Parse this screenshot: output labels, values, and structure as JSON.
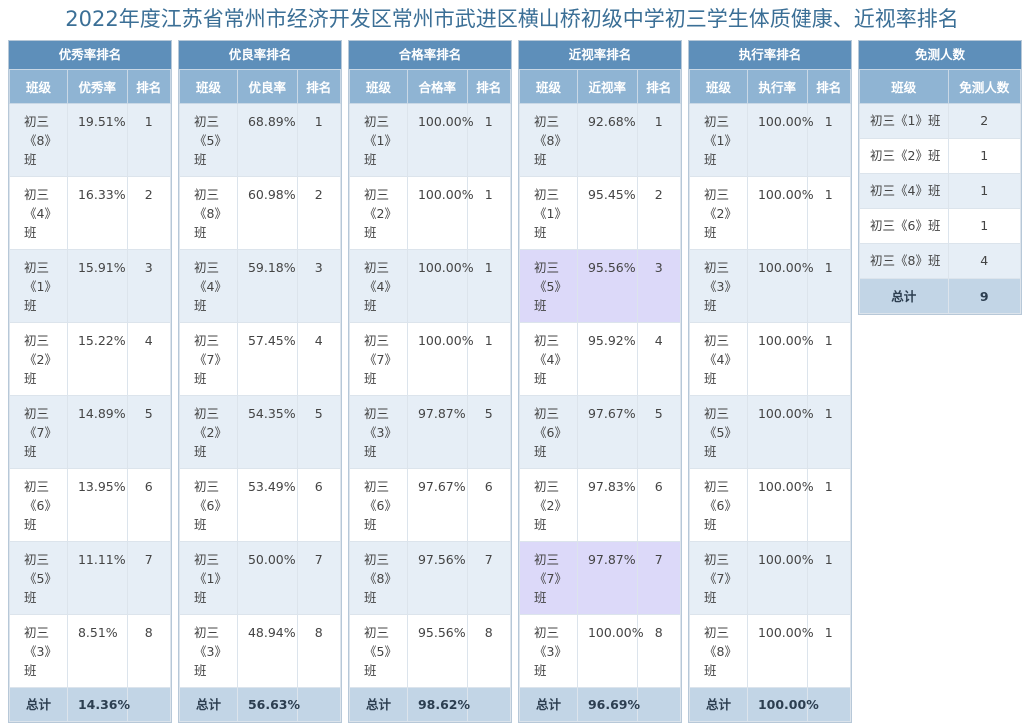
{
  "title": "2022年度江苏省常州市经济开发区常州市武进区横山桥初级中学初三学生体质健康、近视率排名",
  "colors": {
    "title": "#3b6f96",
    "panel_title_bg": "#5e8fba",
    "header_bg": "#8fb4d3",
    "total_bg": "#c2d5e6",
    "highlight": "#dcd9f9"
  },
  "panels": [
    {
      "title": "优秀率排名",
      "headers": [
        "班级",
        "优秀率",
        "排名"
      ],
      "rows": [
        [
          "初三《8》班",
          "19.51%",
          "1"
        ],
        [
          "初三《4》班",
          "16.33%",
          "2"
        ],
        [
          "初三《1》班",
          "15.91%",
          "3"
        ],
        [
          "初三《2》班",
          "15.22%",
          "4"
        ],
        [
          "初三《7》班",
          "14.89%",
          "5"
        ],
        [
          "初三《6》班",
          "13.95%",
          "6"
        ],
        [
          "初三《5》班",
          "11.11%",
          "7"
        ],
        [
          "初三《3》班",
          "8.51%",
          "8"
        ]
      ],
      "total_label": "总计",
      "total_value": "14.36%"
    },
    {
      "title": "优良率排名",
      "headers": [
        "班级",
        "优良率",
        "排名"
      ],
      "rows": [
        [
          "初三《5》班",
          "68.89%",
          "1"
        ],
        [
          "初三《8》班",
          "60.98%",
          "2"
        ],
        [
          "初三《4》班",
          "59.18%",
          "3"
        ],
        [
          "初三《7》班",
          "57.45%",
          "4"
        ],
        [
          "初三《2》班",
          "54.35%",
          "5"
        ],
        [
          "初三《6》班",
          "53.49%",
          "6"
        ],
        [
          "初三《1》班",
          "50.00%",
          "7"
        ],
        [
          "初三《3》班",
          "48.94%",
          "8"
        ]
      ],
      "total_label": "总计",
      "total_value": "56.63%"
    },
    {
      "title": "合格率排名",
      "headers": [
        "班级",
        "合格率",
        "排名"
      ],
      "rows": [
        [
          "初三《1》班",
          "100.00%",
          "1"
        ],
        [
          "初三《2》班",
          "100.00%",
          "1"
        ],
        [
          "初三《4》班",
          "100.00%",
          "1"
        ],
        [
          "初三《7》班",
          "100.00%",
          "1"
        ],
        [
          "初三《3》班",
          "97.87%",
          "5"
        ],
        [
          "初三《6》班",
          "97.67%",
          "6"
        ],
        [
          "初三《8》班",
          "97.56%",
          "7"
        ],
        [
          "初三《5》班",
          "95.56%",
          "8"
        ]
      ],
      "total_label": "总计",
      "total_value": "98.62%"
    },
    {
      "title": "近视率排名",
      "headers": [
        "班级",
        "近视率",
        "排名"
      ],
      "rows": [
        [
          "初三《8》班",
          "92.68%",
          "1"
        ],
        [
          "初三《1》班",
          "95.45%",
          "2"
        ],
        [
          "初三《5》班",
          "95.56%",
          "3"
        ],
        [
          "初三《4》班",
          "95.92%",
          "4"
        ],
        [
          "初三《6》班",
          "97.67%",
          "5"
        ],
        [
          "初三《2》班",
          "97.83%",
          "6"
        ],
        [
          "初三《7》班",
          "97.87%",
          "7"
        ],
        [
          "初三《3》班",
          "100.00%",
          "8"
        ]
      ],
      "highlighted_rows": [
        2,
        6
      ],
      "total_label": "总计",
      "total_value": "96.69%"
    },
    {
      "title": "执行率排名",
      "headers": [
        "班级",
        "执行率",
        "排名"
      ],
      "rows": [
        [
          "初三《1》班",
          "100.00%",
          "1"
        ],
        [
          "初三《2》班",
          "100.00%",
          "1"
        ],
        [
          "初三《3》班",
          "100.00%",
          "1"
        ],
        [
          "初三《4》班",
          "100.00%",
          "1"
        ],
        [
          "初三《5》班",
          "100.00%",
          "1"
        ],
        [
          "初三《6》班",
          "100.00%",
          "1"
        ],
        [
          "初三《7》班",
          "100.00%",
          "1"
        ],
        [
          "初三《8》班",
          "100.00%",
          "1"
        ]
      ],
      "total_label": "总计",
      "total_value": "100.00%"
    }
  ],
  "exempt": {
    "title": "免测人数",
    "headers": [
      "班级",
      "免测人数"
    ],
    "rows": [
      [
        "初三《1》班",
        "2"
      ],
      [
        "初三《2》班",
        "1"
      ],
      [
        "初三《4》班",
        "1"
      ],
      [
        "初三《6》班",
        "1"
      ],
      [
        "初三《8》班",
        "4"
      ]
    ],
    "total_label": "总计",
    "total_value": "9"
  }
}
